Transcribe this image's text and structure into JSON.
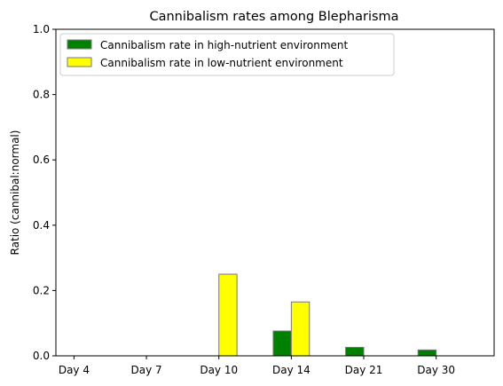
{
  "chart_data": {
    "type": "bar",
    "title": "Cannibalism rates among Blepharisma",
    "xlabel": "",
    "ylabel": "Ratio (cannibal:normal)",
    "ylim": [
      0,
      1.0
    ],
    "yticks": [
      "0.0",
      "0.2",
      "0.4",
      "0.6",
      "0.8",
      "1.0"
    ],
    "categories": [
      "Day 4",
      "Day 7",
      "Day 10",
      "Day 14",
      "Day 21",
      "Day 30"
    ],
    "series": [
      {
        "name": "Cannibalism rate in high-nutrient environment",
        "color": "#008000",
        "values": [
          0,
          0,
          0,
          0.076,
          0.026,
          0.018
        ]
      },
      {
        "name": "Cannibalism rate in low-nutrient environment",
        "color": "#ffff00",
        "values": [
          0,
          0,
          0.25,
          0.165,
          0,
          0
        ]
      }
    ],
    "legend_position": "top-left",
    "grid": false
  }
}
